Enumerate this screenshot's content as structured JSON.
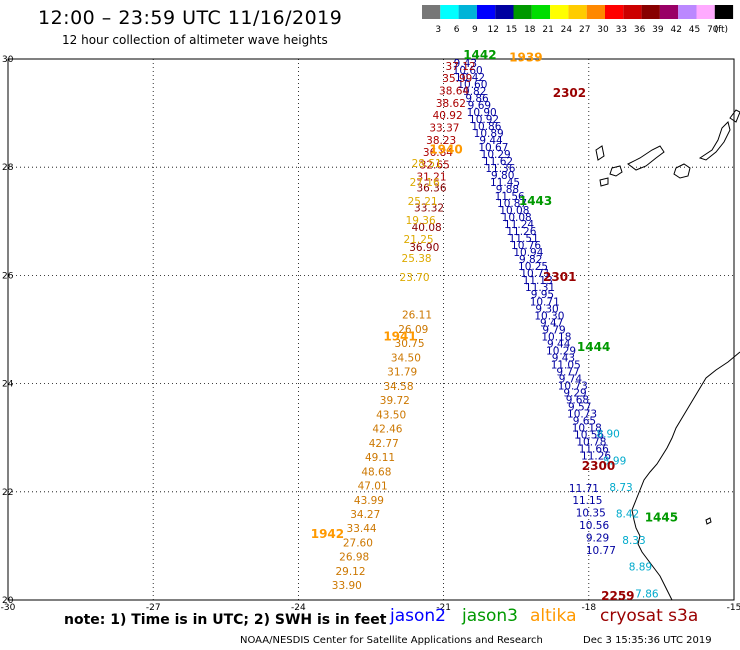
{
  "header": {
    "title": "12:00 – 23:59 UTC 11/16/2019",
    "subtitle": "12 hour collection of altimeter wave heights"
  },
  "legend": {
    "unit": "(ft)",
    "bins": [
      {
        "label": "3",
        "color": "#777777"
      },
      {
        "label": "6",
        "color": "#00ffff"
      },
      {
        "label": "9",
        "color": "#00b4d8"
      },
      {
        "label": "12",
        "color": "#0000ff"
      },
      {
        "label": "15",
        "color": "#0000a0"
      },
      {
        "label": "18",
        "color": "#009900"
      },
      {
        "label": "21",
        "color": "#00dd00"
      },
      {
        "label": "24",
        "color": "#ffff00"
      },
      {
        "label": "27",
        "color": "#ffcc00"
      },
      {
        "label": "30",
        "color": "#ff8800"
      },
      {
        "label": "33",
        "color": "#ff0000"
      },
      {
        "label": "36",
        "color": "#cc0000"
      },
      {
        "label": "39",
        "color": "#880000"
      },
      {
        "label": "42",
        "color": "#990066"
      },
      {
        "label": "45",
        "color": "#bb88ff"
      },
      {
        "label": "70",
        "color": "#ffaaff"
      },
      {
        "label": "",
        "color": "#000000"
      }
    ]
  },
  "axes": {
    "lon_ticks": [
      "-30",
      "-27",
      "-24",
      "-21",
      "-18",
      "-15"
    ],
    "lat_ticks": [
      "30",
      "28",
      "26",
      "24",
      "22",
      "20"
    ],
    "lon_values": [
      -30,
      -27,
      -24,
      -21,
      -18,
      -15
    ],
    "lat_values": [
      30,
      28,
      26,
      24,
      22,
      20
    ]
  },
  "satellites": [
    {
      "name": "jason2",
      "color": "#0000ff"
    },
    {
      "name": "jason3",
      "color": "#009900"
    },
    {
      "name": "altika",
      "color": "#ff9900"
    },
    {
      "name": "cryosat s3a",
      "color": "#990000"
    }
  ],
  "note": "note: 1) Time is in UTC; 2) SWH is in feet",
  "credit": "NOAA/NESDIS Center for Satellite Applications and Research",
  "stamp": "Dec  3 15:35:36 UTC 2019",
  "map_data": {
    "tracks": [
      {
        "sat": "jason2",
        "color": "#0000a0",
        "lon_start": -20.55,
        "lon_end": -17.85,
        "lat_start": 29.85,
        "lat_end": 22.6,
        "values": [
          "9.43",
          "10.60",
          "10.42",
          "10.60",
          "9.82",
          "9.86",
          "9.69",
          "10.90",
          "10.92",
          "10.86",
          "10.89",
          "9.44",
          "10.67",
          "10.29",
          "11.62",
          "11.36",
          "9.80",
          "11.45",
          "9.88",
          "11.56",
          "10.87",
          "10.08",
          "10.08",
          "11.24",
          "11.26",
          "11.51",
          "10.76",
          "10.94",
          "9.82",
          "10.25",
          "10.71",
          "11.13",
          "11.31",
          "9.95",
          "10.71",
          "9.30",
          "10.30",
          "9.47",
          "9.79",
          "10.18",
          "9.44",
          "10.29",
          "9.43",
          "11.05",
          "9.77",
          "9.74",
          "10.73",
          "9.29",
          "9.68",
          "9.57",
          "10.73",
          "9.65",
          "10.18",
          "10.56",
          "10.78",
          "11.66",
          "11.26"
        ]
      },
      {
        "sat": "jason2b",
        "color": "#0000a0",
        "lon_start": -18.1,
        "lon_end": -17.75,
        "lat_start": 22.0,
        "lat_end": 20.85,
        "values": [
          "11.71",
          "11.15",
          "10.35",
          "10.56",
          "9.29",
          "10.77"
        ]
      },
      {
        "sat": "cryosat",
        "color": "#aa0000",
        "lon_start": -20.65,
        "lon_end": -21.25,
        "lat_start": 29.8,
        "lat_end": 27.75,
        "values": [
          "37.12",
          "35.99",
          "38.64",
          "38.62",
          "40.92",
          "33.37",
          "38.23",
          "36.84",
          "32.65",
          "31.21"
        ]
      },
      {
        "sat": "cryosat2",
        "color": "#880000",
        "lon_start": -21.25,
        "lon_end": -21.4,
        "lat_start": 27.55,
        "lat_end": 26.45,
        "values": [
          "36.36",
          "33.32",
          "40.08",
          "36.90"
        ]
      },
      {
        "sat": "altika",
        "color": "#ddaa00",
        "lon_start": -21.35,
        "lon_end": -21.6,
        "lat_start": 28.0,
        "lat_end": 25.9,
        "values": [
          "28.51",
          "27.16",
          "25.21",
          "19.36",
          "21.25",
          "25.38",
          "23.70"
        ]
      },
      {
        "sat": "altika2",
        "color": "#cc7700",
        "lon_start": -21.55,
        "lon_end": -23.0,
        "lat_start": 25.2,
        "lat_end": 20.2,
        "values": [
          "26.11",
          "26.09",
          "30.75",
          "34.50",
          "31.79",
          "34.58",
          "39.72",
          "43.50",
          "42.46",
          "42.77",
          "49.11",
          "48.68",
          "47.01",
          "43.99",
          "34.27",
          "33.44",
          "27.60",
          "26.98",
          "29.12",
          "33.90"
        ]
      },
      {
        "sat": "cyan",
        "color": "#00aacc",
        "lon_start": -17.6,
        "lon_end": -16.8,
        "lat_start": 23.0,
        "lat_end": 20.05,
        "values": [
          "8.90",
          "8.99",
          "8.73",
          "8.42",
          "8.33",
          "8.89",
          "7.86"
        ]
      }
    ],
    "time_labels": [
      {
        "text": "1442",
        "color": "#009900",
        "lon": -20.25,
        "lat": 30.0
      },
      {
        "text": "1939",
        "color": "#ff9900",
        "lon": -19.3,
        "lat": 29.95
      },
      {
        "text": "2302",
        "color": "#990000",
        "lon": -18.4,
        "lat": 29.3
      },
      {
        "text": "1940",
        "color": "#ff9900",
        "lon": -20.95,
        "lat": 28.25
      },
      {
        "text": "1443",
        "color": "#009900",
        "lon": -19.1,
        "lat": 27.3
      },
      {
        "text": "2301",
        "color": "#990000",
        "lon": -18.6,
        "lat": 25.9
      },
      {
        "text": "1941",
        "color": "#ff9900",
        "lon": -21.9,
        "lat": 24.8
      },
      {
        "text": "1444",
        "color": "#009900",
        "lon": -17.9,
        "lat": 24.6
      },
      {
        "text": "2300",
        "color": "#990000",
        "lon": -17.8,
        "lat": 22.4
      },
      {
        "text": "1445",
        "color": "#009900",
        "lon": -16.5,
        "lat": 21.45
      },
      {
        "text": "1942",
        "color": "#ff9900",
        "lon": -23.4,
        "lat": 21.15
      },
      {
        "text": "2259",
        "color": "#990000",
        "lon": -17.4,
        "lat": 20.0
      }
    ]
  }
}
